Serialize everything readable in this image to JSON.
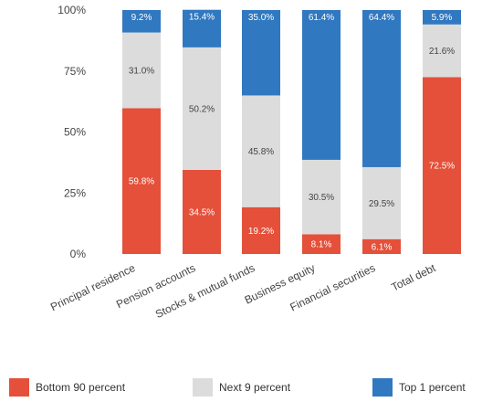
{
  "chart_data": {
    "type": "bar",
    "stacked": true,
    "categories": [
      "Principal residence",
      "Pension accounts",
      "Stocks & mutual funds",
      "Business equity",
      "Financial securities",
      "Total debt"
    ],
    "series": [
      {
        "name": "Bottom 90 percent",
        "color": "#e4503a",
        "values": [
          59.8,
          34.5,
          19.2,
          8.1,
          6.1,
          72.5
        ],
        "labels": [
          "59.8%",
          "34.5%",
          "19.2%",
          "8.1%",
          "6.1%",
          "72.5%"
        ]
      },
      {
        "name": "Next 9 percent",
        "color": "#dcdcdc",
        "values": [
          31.0,
          50.2,
          45.8,
          30.5,
          29.5,
          21.6
        ],
        "labels": [
          "31.0%",
          "50.2%",
          "45.8%",
          "30.5%",
          "29.5%",
          "21.6%"
        ]
      },
      {
        "name": "Top 1 percent",
        "color": "#3078c0",
        "values": [
          9.2,
          15.4,
          35.0,
          61.4,
          64.4,
          5.9
        ],
        "labels": [
          "9.2%",
          "15.4%",
          "35.0%",
          "61.4%",
          "64.4%",
          "5.9%"
        ]
      }
    ],
    "yticks": [
      0,
      25,
      50,
      75,
      100
    ],
    "ytick_labels": [
      "0%",
      "25%",
      "50%",
      "75%",
      "100%"
    ],
    "ylim": [
      0,
      100
    ],
    "grid": false,
    "legend_position": "bottom"
  }
}
